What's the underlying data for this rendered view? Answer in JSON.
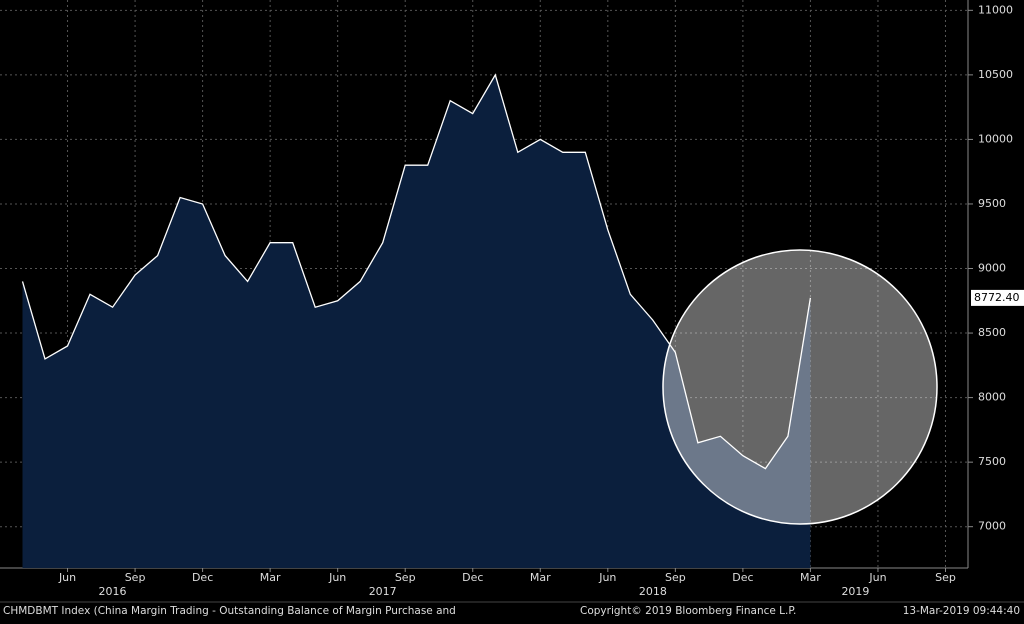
{
  "chart_data": {
    "type": "area",
    "x": [
      "2016-04",
      "2016-05",
      "2016-06",
      "2016-07",
      "2016-08",
      "2016-09",
      "2016-10",
      "2016-11",
      "2016-12",
      "2017-01",
      "2017-02",
      "2017-03",
      "2017-04",
      "2017-05",
      "2017-06",
      "2017-07",
      "2017-08",
      "2017-09",
      "2017-10",
      "2017-11",
      "2017-12",
      "2018-01",
      "2018-02",
      "2018-03",
      "2018-04",
      "2018-05",
      "2018-06",
      "2018-07",
      "2018-08",
      "2018-09",
      "2018-10",
      "2018-11",
      "2018-12",
      "2019-01",
      "2019-02",
      "2019-03"
    ],
    "series": [
      {
        "name": "CHMDBMT Index (China Margin Trading - Outstanding Balance of Margin Purchase and",
        "color": "#ffffff",
        "fill": "#0b1f3d",
        "values": [
          8900,
          8300,
          8400,
          8800,
          8700,
          8950,
          9100,
          9550,
          9500,
          9100,
          8900,
          9200,
          9200,
          8700,
          8750,
          8900,
          9200,
          9800,
          9800,
          10300,
          10200,
          10500,
          9900,
          10000,
          9900,
          9900,
          9300,
          8800,
          8600,
          8350,
          7650,
          7700,
          7550,
          7450,
          7700,
          8772.4
        ],
        "value_labels": [
          null,
          null,
          null,
          null,
          null,
          null,
          null,
          null,
          null,
          null,
          null,
          null,
          null,
          null,
          null,
          null,
          null,
          null,
          null,
          null,
          null,
          null,
          null,
          null,
          null,
          null,
          null,
          null,
          null,
          null,
          null,
          null,
          null,
          null,
          null,
          "8772.40"
        ]
      }
    ],
    "xlim": [
      "2016-03",
      "2019-10"
    ],
    "xticks": [
      {
        "value": "2016-06",
        "label": "Jun"
      },
      {
        "value": "2016-09",
        "label": "Sep"
      },
      {
        "value": "2016-12",
        "label": "Dec"
      },
      {
        "value": "2017-03",
        "label": "Mar"
      },
      {
        "value": "2017-06",
        "label": "Jun"
      },
      {
        "value": "2017-09",
        "label": "Sep"
      },
      {
        "value": "2017-12",
        "label": "Dec"
      },
      {
        "value": "2018-03",
        "label": "Mar"
      },
      {
        "value": "2018-06",
        "label": "Jun"
      },
      {
        "value": "2018-09",
        "label": "Sep"
      },
      {
        "value": "2018-12",
        "label": "Dec"
      },
      {
        "value": "2019-03",
        "label": "Mar"
      },
      {
        "value": "2019-06",
        "label": "Jun"
      },
      {
        "value": "2019-09",
        "label": "Sep"
      }
    ],
    "year_labels": [
      {
        "value": "2016-08",
        "label": "2016"
      },
      {
        "value": "2017-08",
        "label": "2017"
      },
      {
        "value": "2018-08",
        "label": "2018"
      },
      {
        "value": "2019-05",
        "label": "2019"
      }
    ],
    "ylim": [
      6680,
      11080
    ],
    "yticks": [
      7000,
      7500,
      8000,
      8500,
      9000,
      9500,
      10000,
      10500,
      11000
    ],
    "grid": true,
    "copyright": "Copyright© 2019 Bloomberg Finance L.P.",
    "timestamp": "13-Mar-2019 09:44:40"
  }
}
